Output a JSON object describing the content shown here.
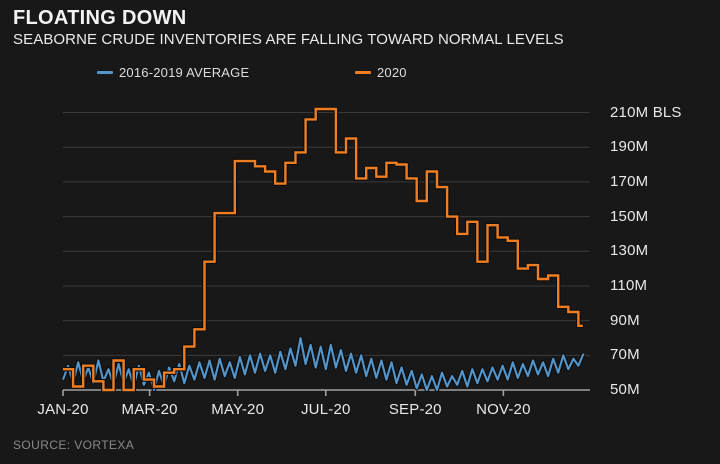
{
  "header": {
    "title": "FLOATING DOWN",
    "subtitle": "SEABORNE CRUDE INVENTORIES ARE FALLING TOWARD NORMAL LEVELS"
  },
  "source": "SOURCE: VORTEXA",
  "colors": {
    "background": "#181818",
    "grid": "#3a3a3a",
    "axis": "#a0a0a0",
    "line_outline": "#0e0e0e",
    "blue": "#5396cc",
    "orange": "#ef7e22"
  },
  "chart_data": {
    "type": "line",
    "title": "FLOATING DOWN",
    "subtitle": "SEABORNE CRUDE INVENTORIES ARE FALLING TOWARD NORMAL LEVELS",
    "unit": "million barrels",
    "grid": true,
    "legend_position": "top",
    "ylim": [
      50,
      210
    ],
    "ytick_step": 20,
    "ytick_labels": [
      "50M",
      "70M",
      "90M",
      "110M",
      "130M",
      "150M",
      "170M",
      "190M",
      "210M BLS"
    ],
    "xtick_labels": [
      "JAN-20",
      "MAR-20",
      "MAY-20",
      "JUL-20",
      "SEP-20",
      "NOV-20"
    ],
    "xtick_days": [
      0,
      60,
      121,
      182,
      244,
      305
    ],
    "x_total_days": 365,
    "series": [
      {
        "name": "2016-2019 AVERAGE",
        "color": "#5396cc",
        "style": "line",
        "interval_days": 3.5,
        "values": [
          56,
          64,
          54,
          66,
          55,
          63,
          54,
          67,
          55,
          62,
          53,
          65,
          54,
          62,
          52,
          64,
          53,
          60,
          50,
          61,
          52,
          63,
          55,
          65,
          54,
          64,
          56,
          66,
          57,
          67,
          56,
          68,
          58,
          66,
          57,
          69,
          59,
          70,
          60,
          71,
          61,
          70,
          60,
          72,
          62,
          74,
          64,
          80,
          65,
          76,
          63,
          75,
          62,
          76,
          63,
          73,
          61,
          71,
          60,
          70,
          58,
          68,
          57,
          67,
          56,
          66,
          54,
          63,
          53,
          61,
          51,
          59,
          50,
          58,
          50,
          60,
          52,
          58,
          53,
          61,
          52,
          62,
          54,
          62,
          55,
          63,
          56,
          64,
          56,
          66,
          57,
          65,
          58,
          67,
          59,
          66,
          58,
          68,
          60,
          70,
          62,
          68,
          64,
          71
        ]
      },
      {
        "name": "2020",
        "color": "#ef7e22",
        "style": "step",
        "interval_days": 7,
        "end_day": 360,
        "values": [
          62,
          52,
          64,
          55,
          50,
          67,
          50,
          62,
          56,
          52,
          60,
          62,
          75,
          85,
          124,
          152,
          152,
          182,
          182,
          179,
          176,
          169,
          181,
          187,
          206,
          212,
          212,
          187,
          195,
          172,
          178,
          173,
          181,
          180,
          172,
          159,
          176,
          167,
          150,
          140,
          147,
          124,
          145,
          138,
          136,
          120,
          122,
          114,
          116,
          98,
          95,
          87
        ]
      }
    ]
  }
}
